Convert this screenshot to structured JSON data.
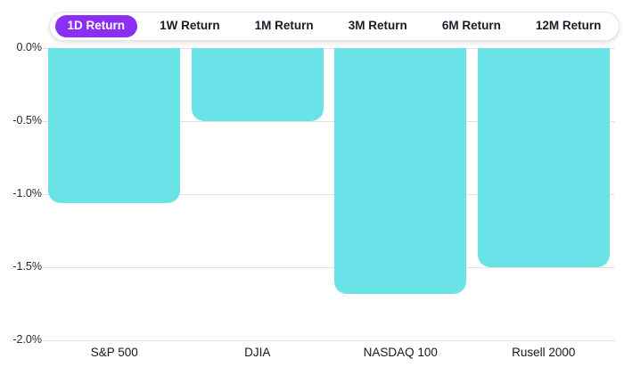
{
  "tabs": {
    "items": [
      {
        "label": "1D Return",
        "active": true
      },
      {
        "label": "1W Return",
        "active": false
      },
      {
        "label": "1M Return",
        "active": false
      },
      {
        "label": "3M Return",
        "active": false
      },
      {
        "label": "6M Return",
        "active": false
      },
      {
        "label": "12M Return",
        "active": false
      }
    ]
  },
  "chart_data": {
    "type": "bar",
    "title": "",
    "xlabel": "",
    "ylabel": "",
    "categories": [
      "S&P 500",
      "DJIA",
      "NASDAQ 100",
      "Rusell 2000"
    ],
    "series": [
      {
        "name": "1D Return",
        "values": [
          -1.06,
          -0.5,
          -1.68,
          -1.5
        ]
      }
    ],
    "y_ticks": [
      {
        "label": "0.0%",
        "value": 0
      },
      {
        "label": "-0.5%",
        "value": -0.5
      },
      {
        "label": "-1.0%",
        "value": -1.0
      },
      {
        "label": "-1.5%",
        "value": -1.5
      },
      {
        "label": "-2.0%",
        "value": -2.0
      }
    ],
    "ylim": [
      -2.0,
      0.0
    ],
    "grid": true,
    "legend": "none",
    "bar_color": "#69E2E8"
  },
  "colors": {
    "background": "#FFFFFF",
    "bar": "#69E2E8",
    "gridline": "#E2E2E2",
    "active_tab_bg": "#8B2FF2",
    "active_tab_text": "#FFFFFF",
    "tab_text": "#1C1C28",
    "axis_text": "#26262E"
  }
}
